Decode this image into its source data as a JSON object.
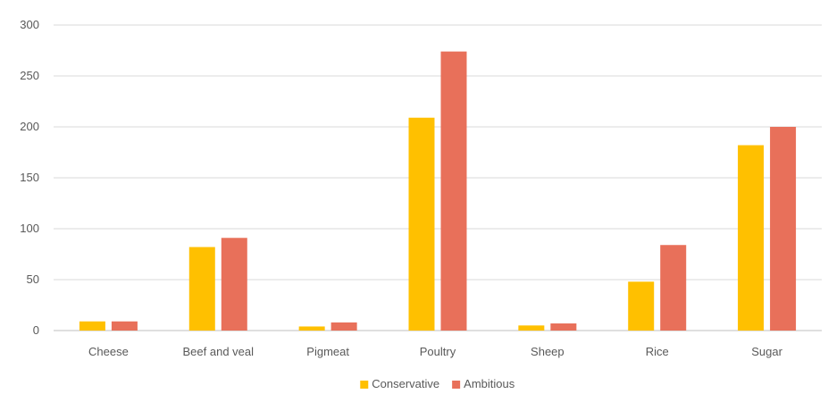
{
  "chart_data": {
    "type": "bar",
    "categories": [
      "Cheese",
      "Beef and veal",
      "Pigmeat",
      "Poultry",
      "Sheep",
      "Rice",
      "Sugar"
    ],
    "series": [
      {
        "name": "Conservative",
        "color": "#FFC000",
        "values": [
          9,
          82,
          4,
          209,
          5,
          48,
          182
        ]
      },
      {
        "name": "Ambitious",
        "color": "#E8705A",
        "values": [
          9,
          91,
          8,
          274,
          7,
          84,
          200
        ]
      }
    ],
    "y_ticks": [
      "0",
      "50",
      "100",
      "150",
      "200",
      "250",
      "300"
    ],
    "ylim": [
      0,
      300
    ],
    "grid": true,
    "legend_position": "bottom",
    "title": "",
    "xlabel": "",
    "ylabel": ""
  }
}
